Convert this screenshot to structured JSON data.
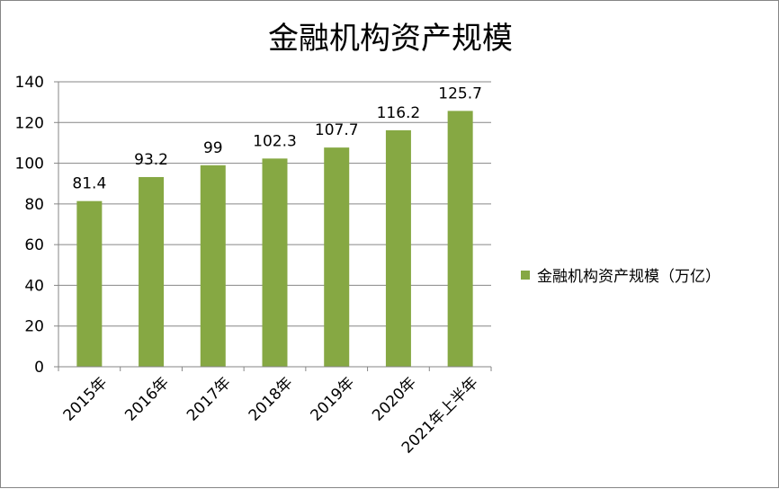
{
  "chart_data": {
    "type": "bar",
    "title": "金融机构资产规模",
    "categories": [
      "2015年",
      "2016年",
      "2017年",
      "2018年",
      "2019年",
      "2020年",
      "2021年上半年"
    ],
    "series": [
      {
        "name": "金融机构资产规模（万亿）",
        "values": [
          81.4,
          93.2,
          99,
          102.3,
          107.7,
          116.2,
          125.7
        ],
        "color": "#86A843"
      }
    ],
    "data_labels": [
      "81.4",
      "93.2",
      "99",
      "102.3",
      "107.7",
      "116.2",
      "125.7"
    ],
    "ylim": [
      0,
      140
    ],
    "yticks": [
      0,
      20,
      40,
      60,
      80,
      100,
      120,
      140
    ],
    "grid": true,
    "legend_position": "right"
  }
}
